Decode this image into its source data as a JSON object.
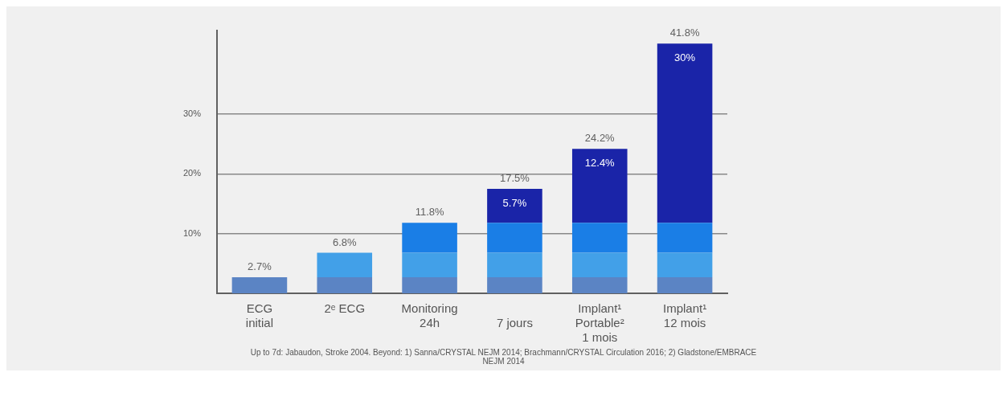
{
  "chart_data": {
    "type": "bar",
    "stacked": true,
    "categories": [
      "ECG\ninitial",
      "2ᵉ ECG",
      "Monitoring\n24h",
      "\n7 jours",
      "Implant¹\nPortable²\n1 mois",
      "Implant¹\n12 mois"
    ],
    "series": [
      {
        "color": "#5b84c4",
        "values": [
          2.7,
          2.7,
          2.7,
          2.7,
          2.7,
          2.7
        ]
      },
      {
        "color": "#42a0e8",
        "values": [
          null,
          4.1,
          4.1,
          4.1,
          4.1,
          4.1
        ]
      },
      {
        "color": "#1a7ee6",
        "values": [
          null,
          null,
          5.0,
          5.0,
          5.0,
          5.0
        ]
      },
      {
        "color": "#1a24a8",
        "values": [
          null,
          null,
          null,
          5.7,
          12.4,
          30.0
        ],
        "value_labels": [
          null,
          null,
          null,
          "5.7%",
          "12.4%",
          "30%"
        ]
      }
    ],
    "totals": [
      "2.7%",
      "6.8%",
      "11.8%",
      "17.5%",
      "24.2%",
      "41.8%"
    ],
    "ylim": [
      0,
      44
    ],
    "yticks": [
      {
        "value": 10,
        "label": "10%"
      },
      {
        "value": 20,
        "label": "20%"
      },
      {
        "value": 30,
        "label": "30%"
      }
    ],
    "grid": "y",
    "legend": false,
    "annotations": [
      "Up to 7d: Jabaudon, Stroke 2004. Beyond: 1) Sanna/CRYSTAL NEJM 2014; Brachmann/CRYSTAL Circulation 2016; 2) Gladstone/EMBRACE NEJM 2014"
    ]
  }
}
